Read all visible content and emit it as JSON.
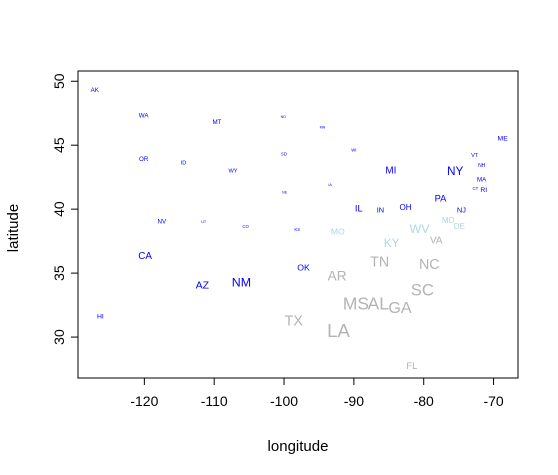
{
  "chart_data": {
    "type": "scatter",
    "title": "",
    "xlabel": "longitude",
    "ylabel": "latitude",
    "xlim": [
      -129.5,
      -66.5
    ],
    "ylim": [
      26.8,
      50.8
    ],
    "xticks": [
      -120,
      -110,
      -100,
      -90,
      -80,
      -70
    ],
    "yticks": [
      30,
      35,
      40,
      45,
      50
    ],
    "xtick_labels": [
      "-120",
      "-110",
      "-100",
      "-90",
      "-80",
      "-70"
    ],
    "ytick_labels": [
      "30",
      "35",
      "40",
      "45",
      "50"
    ],
    "grid": false,
    "points": [
      {
        "label": "AK",
        "x": -127.1,
        "y": 49.3,
        "size": 1,
        "color": "#0000ff"
      },
      {
        "label": "WA",
        "x": -120.1,
        "y": 47.3,
        "size": 1,
        "color": "#0000ff"
      },
      {
        "label": "MT",
        "x": -109.6,
        "y": 46.8,
        "size": 1,
        "color": "#0000ff"
      },
      {
        "label": "ND",
        "x": -100.1,
        "y": 47.2,
        "size": 0.6,
        "color": "#0000ff"
      },
      {
        "label": "MN",
        "x": -94.5,
        "y": 46.4,
        "size": 0.6,
        "color": "#0000ff"
      },
      {
        "label": "ME",
        "x": -68.7,
        "y": 45.5,
        "size": 1.1,
        "color": "#0000ff"
      },
      {
        "label": "OR",
        "x": -120.1,
        "y": 43.9,
        "size": 1,
        "color": "#0000ff"
      },
      {
        "label": "ID",
        "x": -114.4,
        "y": 43.6,
        "size": 0.9,
        "color": "#0000ff"
      },
      {
        "label": "WY",
        "x": -107.3,
        "y": 43.0,
        "size": 0.9,
        "color": "#0000ff"
      },
      {
        "label": "SD",
        "x": -100.0,
        "y": 44.3,
        "size": 0.7,
        "color": "#0000ff"
      },
      {
        "label": "WI",
        "x": -90.0,
        "y": 44.6,
        "size": 0.7,
        "color": "#0000ff"
      },
      {
        "label": "VT",
        "x": -72.7,
        "y": 44.2,
        "size": 0.9,
        "color": "#0000ff"
      },
      {
        "label": "MI",
        "x": -84.7,
        "y": 43.0,
        "size": 1.6,
        "color": "#0000ff"
      },
      {
        "label": "NY",
        "x": -75.5,
        "y": 42.9,
        "size": 1.9,
        "color": "#0000ff"
      },
      {
        "label": "NH",
        "x": -71.7,
        "y": 43.4,
        "size": 0.8,
        "color": "#0000ff"
      },
      {
        "label": "MA",
        "x": -71.7,
        "y": 42.3,
        "size": 1,
        "color": "#0000ff"
      },
      {
        "label": "CT",
        "x": -72.6,
        "y": 41.6,
        "size": 0.7,
        "color": "#0000ff"
      },
      {
        "label": "RI",
        "x": -71.4,
        "y": 41.5,
        "size": 1.1,
        "color": "#0000ff"
      },
      {
        "label": "IA",
        "x": -93.4,
        "y": 41.9,
        "size": 0.6,
        "color": "#0000ff"
      },
      {
        "label": "NE",
        "x": -99.9,
        "y": 41.3,
        "size": 0.6,
        "color": "#0000ff"
      },
      {
        "label": "PA",
        "x": -77.6,
        "y": 40.8,
        "size": 1.5,
        "color": "#0000ff"
      },
      {
        "label": "IL",
        "x": -89.3,
        "y": 40.0,
        "size": 1.5,
        "color": "#0000ff"
      },
      {
        "label": "IN",
        "x": -86.2,
        "y": 39.9,
        "size": 1.2,
        "color": "#0000ff"
      },
      {
        "label": "OH",
        "x": -82.6,
        "y": 40.1,
        "size": 1.3,
        "color": "#0000ff"
      },
      {
        "label": "NJ",
        "x": -74.6,
        "y": 39.9,
        "size": 1.2,
        "color": "#0000ff"
      },
      {
        "label": "NV",
        "x": -117.5,
        "y": 39.0,
        "size": 1,
        "color": "#0000ff"
      },
      {
        "label": "UT",
        "x": -111.5,
        "y": 39.0,
        "size": 0.6,
        "color": "#0000ff"
      },
      {
        "label": "CO",
        "x": -105.5,
        "y": 38.6,
        "size": 0.7,
        "color": "#0000ff"
      },
      {
        "label": "KS",
        "x": -98.1,
        "y": 38.4,
        "size": 0.7,
        "color": "#0000ff"
      },
      {
        "label": "CA",
        "x": -119.9,
        "y": 36.3,
        "size": 1.6,
        "color": "#0000ff"
      },
      {
        "label": "AZ",
        "x": -111.7,
        "y": 34.0,
        "size": 1.7,
        "color": "#0000ff"
      },
      {
        "label": "NM",
        "x": -106.1,
        "y": 34.2,
        "size": 2.0,
        "color": "#0000ff"
      },
      {
        "label": "OK",
        "x": -97.2,
        "y": 35.4,
        "size": 1.4,
        "color": "#0000ff"
      },
      {
        "label": "HI",
        "x": -126.3,
        "y": 31.6,
        "size": 1.1,
        "color": "#0000ff"
      },
      {
        "label": "MO",
        "x": -92.3,
        "y": 38.2,
        "size": 1.4,
        "color": "#add8e6"
      },
      {
        "label": "KY",
        "x": -84.6,
        "y": 37.3,
        "size": 1.9,
        "color": "#add8e6"
      },
      {
        "label": "WV",
        "x": -80.6,
        "y": 38.4,
        "size": 2.0,
        "color": "#add8e6"
      },
      {
        "label": "MD",
        "x": -76.5,
        "y": 39.1,
        "size": 1.3,
        "color": "#add8e6"
      },
      {
        "label": "DE",
        "x": -74.9,
        "y": 38.6,
        "size": 1.3,
        "color": "#add8e6"
      },
      {
        "label": "VA",
        "x": -78.2,
        "y": 37.5,
        "size": 1.6,
        "color": "#b3b3b3"
      },
      {
        "label": "AR",
        "x": -92.4,
        "y": 34.7,
        "size": 2.2,
        "color": "#b3b3b3"
      },
      {
        "label": "TN",
        "x": -86.3,
        "y": 35.8,
        "size": 2.3,
        "color": "#b3b3b3"
      },
      {
        "label": "NC",
        "x": -79.2,
        "y": 35.6,
        "size": 2.3,
        "color": "#b3b3b3"
      },
      {
        "label": "SC",
        "x": -80.2,
        "y": 33.6,
        "size": 2.7,
        "color": "#b3b3b3"
      },
      {
        "label": "MS",
        "x": -89.7,
        "y": 32.5,
        "size": 2.8,
        "color": "#b3b3b3"
      },
      {
        "label": "AL",
        "x": -86.5,
        "y": 32.5,
        "size": 2.8,
        "color": "#b3b3b3"
      },
      {
        "label": "GA",
        "x": -83.4,
        "y": 32.2,
        "size": 2.6,
        "color": "#b3b3b3"
      },
      {
        "label": "TX",
        "x": -98.6,
        "y": 31.2,
        "size": 2.3,
        "color": "#b3b3b3"
      },
      {
        "label": "LA",
        "x": -92.2,
        "y": 30.4,
        "size": 3.0,
        "color": "#b3b3b3"
      },
      {
        "label": "FL",
        "x": -81.7,
        "y": 27.7,
        "size": 1.5,
        "color": "#b3b3b3"
      }
    ]
  }
}
